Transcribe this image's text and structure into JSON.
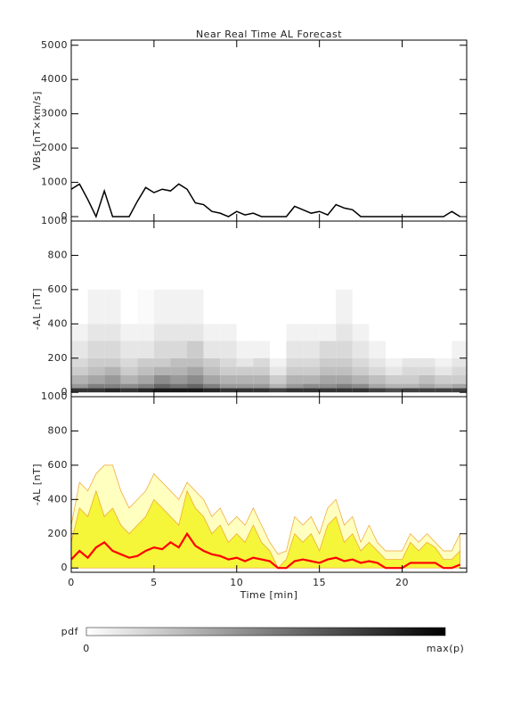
{
  "chart_data": [
    {
      "type": "line",
      "title": "Near Real Time AL Forecast",
      "ylabel": "VBs [nT×km/s]",
      "x": [
        0,
        0.5,
        1,
        1.5,
        2,
        2.5,
        3,
        3.5,
        4,
        4.5,
        5,
        5.5,
        6,
        6.5,
        7,
        7.5,
        8,
        8.5,
        9,
        9.5,
        10,
        10.5,
        11,
        11.5,
        12,
        12.5,
        13,
        13.5,
        14,
        14.5,
        15,
        15.5,
        16,
        16.5,
        17,
        17.5,
        18,
        18.5,
        19,
        19.5,
        20,
        20.5,
        21,
        21.5,
        22,
        22.5,
        23,
        23.5
      ],
      "series": [
        {
          "color": "#000000",
          "values": [
            800,
            950,
            500,
            0,
            750,
            0,
            0,
            0,
            450,
            850,
            700,
            800,
            750,
            950,
            800,
            400,
            350,
            150,
            100,
            0,
            150,
            50,
            100,
            0,
            0,
            0,
            0,
            300,
            200,
            100,
            150,
            50,
            350,
            250,
            200,
            0,
            0,
            0,
            0,
            0,
            0,
            0,
            0,
            0,
            0,
            0,
            150,
            0
          ]
        }
      ],
      "xlim": [
        0,
        23.9
      ],
      "xticks": [
        0,
        5,
        10,
        15,
        20
      ],
      "ylim": [
        -130,
        5150
      ],
      "yticks": [
        0,
        1000,
        2000,
        3000,
        4000,
        5000
      ]
    },
    {
      "type": "heatmap",
      "ylabel": "-AL [nT]",
      "xbins": [
        0,
        1,
        2,
        3,
        4,
        5,
        6,
        7,
        8,
        9,
        10,
        11,
        12,
        13,
        14,
        15,
        16,
        17,
        18,
        19,
        20,
        21,
        22,
        23,
        24
      ],
      "ybins": [
        0,
        25,
        50,
        100,
        150,
        200,
        300,
        400,
        600
      ],
      "values": [
        [
          0.8,
          0.4,
          0.3,
          0.2,
          0.15,
          0.1,
          0.05,
          0
        ],
        [
          0.8,
          0.5,
          0.35,
          0.25,
          0.2,
          0.15,
          0.1,
          0.05
        ],
        [
          0.85,
          0.5,
          0.4,
          0.3,
          0.2,
          0.15,
          0.1,
          0.05
        ],
        [
          0.8,
          0.45,
          0.3,
          0.2,
          0.15,
          0.1,
          0.05,
          0
        ],
        [
          0.85,
          0.5,
          0.35,
          0.25,
          0.2,
          0.1,
          0.05,
          0.02
        ],
        [
          0.9,
          0.6,
          0.45,
          0.3,
          0.2,
          0.15,
          0.1,
          0.05
        ],
        [
          0.9,
          0.55,
          0.4,
          0.3,
          0.25,
          0.15,
          0.1,
          0.05
        ],
        [
          0.9,
          0.6,
          0.45,
          0.35,
          0.25,
          0.2,
          0.1,
          0.05
        ],
        [
          0.85,
          0.5,
          0.35,
          0.25,
          0.2,
          0.1,
          0.05,
          0
        ],
        [
          0.8,
          0.4,
          0.3,
          0.2,
          0.15,
          0.1,
          0.05,
          0
        ],
        [
          0.8,
          0.4,
          0.3,
          0.2,
          0.1,
          0.05,
          0,
          0
        ],
        [
          0.8,
          0.4,
          0.3,
          0.2,
          0.15,
          0.05,
          0,
          0
        ],
        [
          0.75,
          0.3,
          0.2,
          0.1,
          0.05,
          0,
          0,
          0
        ],
        [
          0.8,
          0.4,
          0.3,
          0.2,
          0.15,
          0.1,
          0.05,
          0
        ],
        [
          0.8,
          0.45,
          0.3,
          0.2,
          0.15,
          0.1,
          0.05,
          0
        ],
        [
          0.8,
          0.45,
          0.35,
          0.25,
          0.2,
          0.15,
          0.05,
          0
        ],
        [
          0.8,
          0.5,
          0.35,
          0.25,
          0.2,
          0.15,
          0.1,
          0.05
        ],
        [
          0.8,
          0.45,
          0.3,
          0.2,
          0.15,
          0.1,
          0.05,
          0
        ],
        [
          0.75,
          0.35,
          0.25,
          0.15,
          0.1,
          0.05,
          0,
          0
        ],
        [
          0.7,
          0.3,
          0.2,
          0.1,
          0.05,
          0,
          0,
          0
        ],
        [
          0.75,
          0.3,
          0.2,
          0.15,
          0.1,
          0,
          0,
          0
        ],
        [
          0.75,
          0.35,
          0.25,
          0.15,
          0.1,
          0,
          0,
          0
        ],
        [
          0.75,
          0.3,
          0.2,
          0.1,
          0.05,
          0,
          0,
          0
        ],
        [
          0.75,
          0.35,
          0.2,
          0.15,
          0.1,
          0.05,
          0,
          0
        ]
      ],
      "xlim": [
        0,
        23.9
      ],
      "xticks": [
        0,
        5,
        10,
        15,
        20
      ],
      "ylim": [
        -25,
        1000
      ],
      "yticks": [
        0,
        200,
        400,
        600,
        800,
        1000
      ]
    },
    {
      "type": "area",
      "ylabel": "-AL [nT]",
      "xlabel": "Time [min]",
      "x": [
        0,
        0.5,
        1,
        1.5,
        2,
        2.5,
        3,
        3.5,
        4,
        4.5,
        5,
        5.5,
        6,
        6.5,
        7,
        7.5,
        8,
        8.5,
        9,
        9.5,
        10,
        10.5,
        11,
        11.5,
        12,
        12.5,
        13,
        13.5,
        14,
        14.5,
        15,
        15.5,
        16,
        16.5,
        17,
        17.5,
        18,
        18.5,
        19,
        19.5,
        20,
        20.5,
        21,
        21.5,
        22,
        22.5,
        23,
        23.5
      ],
      "series": [
        {
          "color": "#ffffc0",
          "fill": true,
          "values": [
            250,
            500,
            450,
            550,
            600,
            600,
            450,
            350,
            400,
            450,
            550,
            500,
            450,
            400,
            500,
            450,
            400,
            300,
            350,
            250,
            300,
            250,
            350,
            250,
            150,
            80,
            100,
            300,
            250,
            300,
            200,
            350,
            400,
            250,
            300,
            150,
            250,
            150,
            100,
            100,
            100,
            200,
            150,
            200,
            150,
            100,
            100,
            200
          ]
        },
        {
          "color": "#f5f53a",
          "fill": true,
          "values": [
            150,
            350,
            300,
            450,
            300,
            350,
            250,
            200,
            250,
            300,
            400,
            350,
            300,
            250,
            450,
            350,
            300,
            200,
            250,
            150,
            200,
            150,
            250,
            150,
            100,
            0,
            50,
            200,
            150,
            200,
            100,
            250,
            300,
            150,
            200,
            100,
            150,
            100,
            50,
            50,
            50,
            150,
            100,
            150,
            120,
            50,
            50,
            100
          ]
        },
        {
          "color": "#ff0000",
          "fill": false,
          "values": [
            50,
            100,
            60,
            120,
            150,
            100,
            80,
            60,
            70,
            100,
            120,
            110,
            150,
            120,
            200,
            130,
            100,
            80,
            70,
            50,
            60,
            40,
            60,
            50,
            40,
            0,
            0,
            40,
            50,
            40,
            30,
            50,
            60,
            40,
            50,
            30,
            40,
            30,
            0,
            0,
            0,
            30,
            30,
            30,
            30,
            0,
            0,
            20
          ]
        }
      ],
      "xlim": [
        0,
        23.9
      ],
      "xticks": [
        0,
        5,
        10,
        15,
        20
      ],
      "ylim": [
        -25,
        1000
      ],
      "yticks": [
        0,
        200,
        400,
        600,
        800,
        1000
      ]
    }
  ],
  "colorbar": {
    "label": "pdf",
    "min_label": "0",
    "max_label": "max(p)"
  }
}
